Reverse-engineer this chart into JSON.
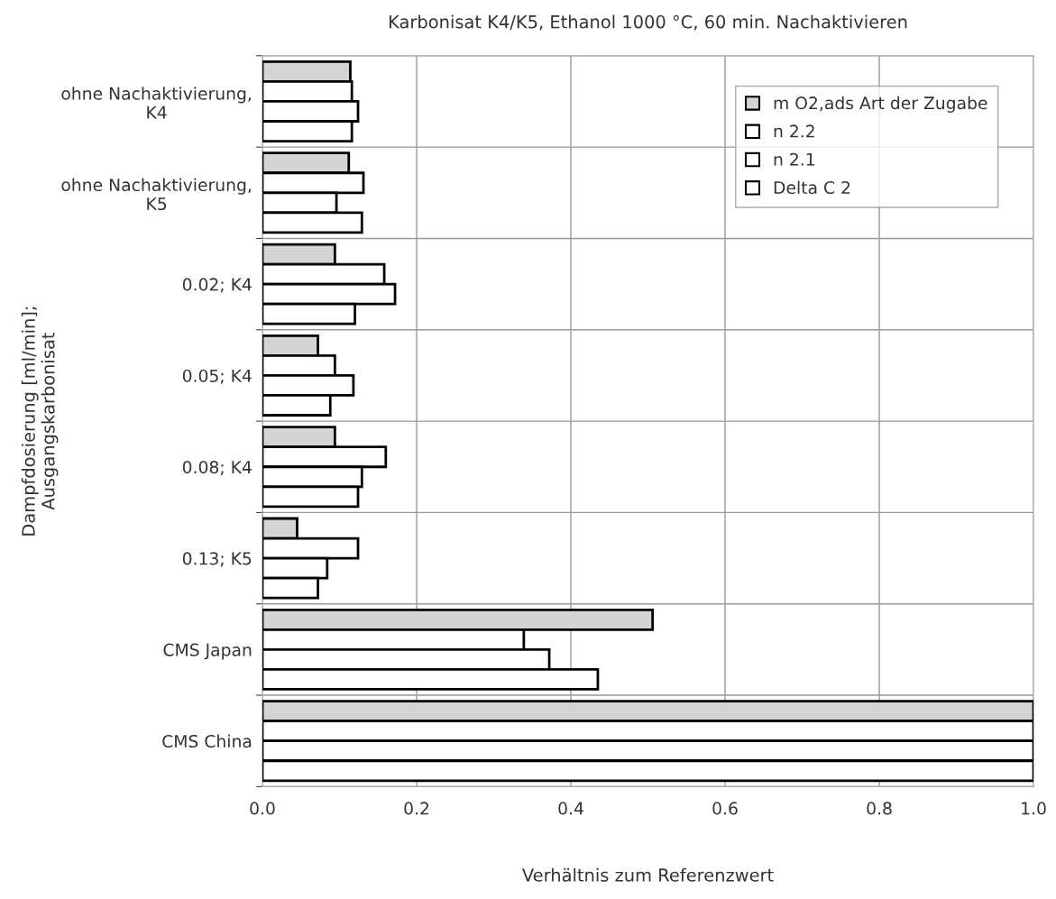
{
  "chart_data": {
    "type": "bar",
    "orientation": "horizontal",
    "title": "Karbonisat K4/K5, Ethanol 1000 °C, 60 min. Nachaktivieren",
    "xlabel": "Verhältnis zum Referenzwert",
    "ylabel": "Dampfdosierung [ml/min];\nAusgangskarbonisat",
    "categories": [
      "ohne Nachaktivierung,\nK4",
      "ohne Nachaktivierung,\nK5",
      "0.02; K4",
      "0.05; K4",
      "0.08; K4",
      "0.13; K5",
      "CMS Japan",
      "CMS China"
    ],
    "series": [
      {
        "name": "m O2,ads Art der Zugabe",
        "color": "#d4d4d4",
        "values": [
          0.114,
          0.112,
          0.094,
          0.072,
          0.094,
          0.045,
          0.506,
          1.0
        ]
      },
      {
        "name": "n 2.2",
        "color": "#ffffff",
        "values": [
          0.116,
          0.131,
          0.158,
          0.094,
          0.16,
          0.124,
          0.339,
          1.0
        ]
      },
      {
        "name": "n 2.1",
        "color": "#ffffff",
        "values": [
          0.124,
          0.096,
          0.172,
          0.118,
          0.129,
          0.084,
          0.372,
          1.0
        ]
      },
      {
        "name": "Delta C 2",
        "color": "#ffffff",
        "values": [
          0.116,
          0.129,
          0.12,
          0.088,
          0.124,
          0.072,
          0.435,
          1.0
        ]
      }
    ],
    "xlim": [
      0,
      1.0
    ],
    "xticks": [
      {
        "value": 0,
        "label": "0.0"
      },
      {
        "value": 0.2,
        "label": "0.2"
      },
      {
        "value": 0.4,
        "label": "0.4"
      },
      {
        "value": 0.6,
        "label": "0.6"
      },
      {
        "value": 0.8,
        "label": "0.8"
      },
      {
        "value": 1.0,
        "label": "1.0"
      }
    ],
    "grid": true,
    "legend": "top right"
  }
}
